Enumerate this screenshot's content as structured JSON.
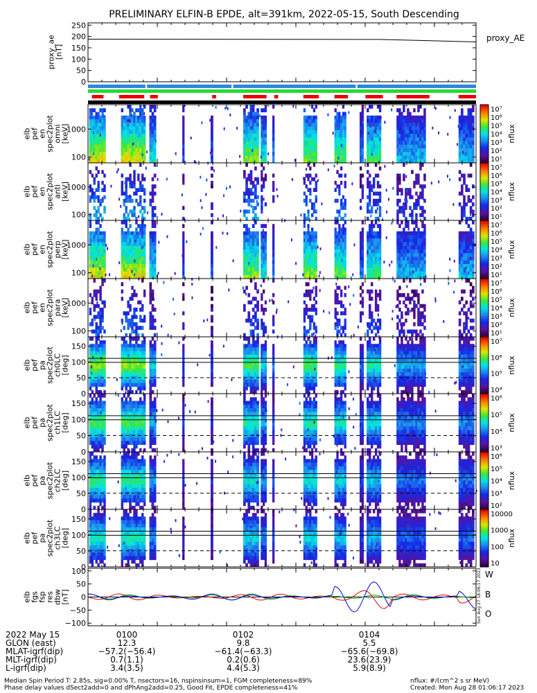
{
  "title": "PRELIMINARY ELFIN-B EPDE, alt=391km, 2022-05-15, South Descending",
  "chart_data": [
    {
      "type": "line",
      "ylabel_lines": [
        "proxy_ae",
        "[nT]"
      ],
      "legend": "proxy_AE",
      "y_ticks": [
        "250",
        "200",
        "150",
        "100",
        "50",
        "0"
      ],
      "ylim": [
        0,
        260
      ],
      "x": [
        0,
        1
      ],
      "values": [
        188,
        176
      ]
    },
    {
      "type": "heatmap",
      "ylabel_lines": [
        "elb",
        "pef",
        "en",
        "spec2plot",
        "omni",
        "[keV]"
      ],
      "y_ticks": [
        "1000",
        "100"
      ],
      "colorbar_ticks": [
        "10⁷",
        "10⁶",
        "10⁵",
        "10⁴",
        "10³",
        "10²",
        "10¹"
      ],
      "colorbar_label": "nflux"
    },
    {
      "type": "heatmap",
      "ylabel_lines": [
        "elb",
        "pef",
        "en",
        "spec2plot",
        "anti",
        "[keV]"
      ],
      "y_ticks": [
        "1000",
        "100"
      ],
      "colorbar_ticks": [
        "10⁷",
        "10⁶",
        "10⁵",
        "10⁴",
        "10³",
        "10²",
        "10¹"
      ],
      "colorbar_label": "nflux"
    },
    {
      "type": "heatmap",
      "ylabel_lines": [
        "elb",
        "pef",
        "en",
        "spec2plot",
        "perp",
        "[keV]"
      ],
      "y_ticks": [
        "1000",
        "100"
      ],
      "colorbar_ticks": [
        "10⁷",
        "10⁶",
        "10⁵",
        "10⁴",
        "10³",
        "10²",
        "10¹"
      ],
      "colorbar_label": "nflux"
    },
    {
      "type": "heatmap",
      "ylabel_lines": [
        "elb",
        "pef",
        "en",
        "spec2plot",
        "para",
        "[keV]"
      ],
      "y_ticks": [
        "1000",
        "100"
      ],
      "colorbar_ticks": [
        "10⁷",
        "10⁶",
        "10⁵",
        "10⁴",
        "10³",
        "10²",
        "10¹"
      ],
      "colorbar_label": "nflux"
    },
    {
      "type": "heatmap",
      "ylabel_lines": [
        "elb",
        "pef",
        "pa",
        "spec2plot",
        "ch0LC",
        "[deg]"
      ],
      "y_ticks": [
        "150",
        "100",
        "50",
        "0"
      ],
      "colorbar_ticks": [
        "10⁷",
        "10⁶",
        "10⁵",
        "10⁴"
      ],
      "colorbar_label": "nflux"
    },
    {
      "type": "heatmap",
      "ylabel_lines": [
        "elb",
        "pef",
        "pa",
        "spec2plot",
        "ch1LC",
        "[deg]"
      ],
      "y_ticks": [
        "150",
        "100",
        "50",
        "0"
      ],
      "colorbar_ticks": [
        "10⁶",
        "10⁵",
        "10⁴",
        "10³"
      ],
      "colorbar_label": "nflux"
    },
    {
      "type": "heatmap",
      "ylabel_lines": [
        "elb",
        "pef",
        "pa",
        "spec2plot",
        "ch2LC",
        "[deg]"
      ],
      "y_ticks": [
        "150",
        "100",
        "50",
        "0"
      ],
      "colorbar_ticks": [
        "10⁶",
        "10⁵",
        "10⁴",
        "10³",
        "10²"
      ],
      "colorbar_label": "nflux"
    },
    {
      "type": "heatmap",
      "ylabel_lines": [
        "elb",
        "pef",
        "pa",
        "spec2plot",
        "ch3LC",
        "[deg]"
      ],
      "y_ticks": [
        "150",
        "100",
        "50",
        "0"
      ],
      "colorbar_ticks": [
        "10000",
        "1000",
        "100",
        "10"
      ],
      "colorbar_label": "nflux"
    },
    {
      "type": "line",
      "ylabel_lines": [
        "elb",
        "fgs",
        "fsp",
        "res",
        "dbw",
        "[nT]"
      ],
      "y_ticks": [
        "100",
        "50",
        "0",
        "−50",
        "−100"
      ],
      "ylim": [
        -110,
        110
      ],
      "series": [
        {
          "name": "W",
          "color": "#dd0000"
        },
        {
          "name": "B",
          "color": "#00b000"
        },
        {
          "name": "O",
          "color": "#0000dd"
        }
      ]
    }
  ],
  "side_stamp": "Sun Aug 27 18:06:17 2023",
  "x_axis": {
    "row_labels": [
      "2022 May 15",
      "GLON (east)",
      "MLAT-igrf(dip)",
      "MLT-igrf(dip)",
      "L-igrf(dip)"
    ],
    "ticks": [
      {
        "time": "0100",
        "glon": "12.3",
        "mlat": "−57.2(−56.4)",
        "mlt": "0.7(1.1)",
        "l": "3.4(3.5)"
      },
      {
        "time": "0102",
        "glon": "9.8",
        "mlat": "−61.4(−63.3)",
        "mlt": "0.2(0.6)",
        "l": "4.4(5.3)"
      },
      {
        "time": "0104",
        "glon": "5.5",
        "mlat": "−65.6(−69.8)",
        "mlt": "23.6(23.9)",
        "l": "5.9(8.9)"
      }
    ]
  },
  "footer": {
    "line1": "Median Spin Period T: 2.85s, sig=0.00% T, nsectors=16, nspinsinsum=1, FGM completeness=89%",
    "line2": "Phase delay values dSect2add=0 and dPhAng2add=0.25, Good Fit, EPDE completeness=41%",
    "units": "nflux: #/(cm^2 s sr MeV)",
    "created": "Created: Mon Aug 28 01:06:17 2023"
  },
  "colors": {
    "blue_bar": "#2f86e0",
    "green_bar": "#22dd33",
    "red_bar": "#ee0000"
  }
}
